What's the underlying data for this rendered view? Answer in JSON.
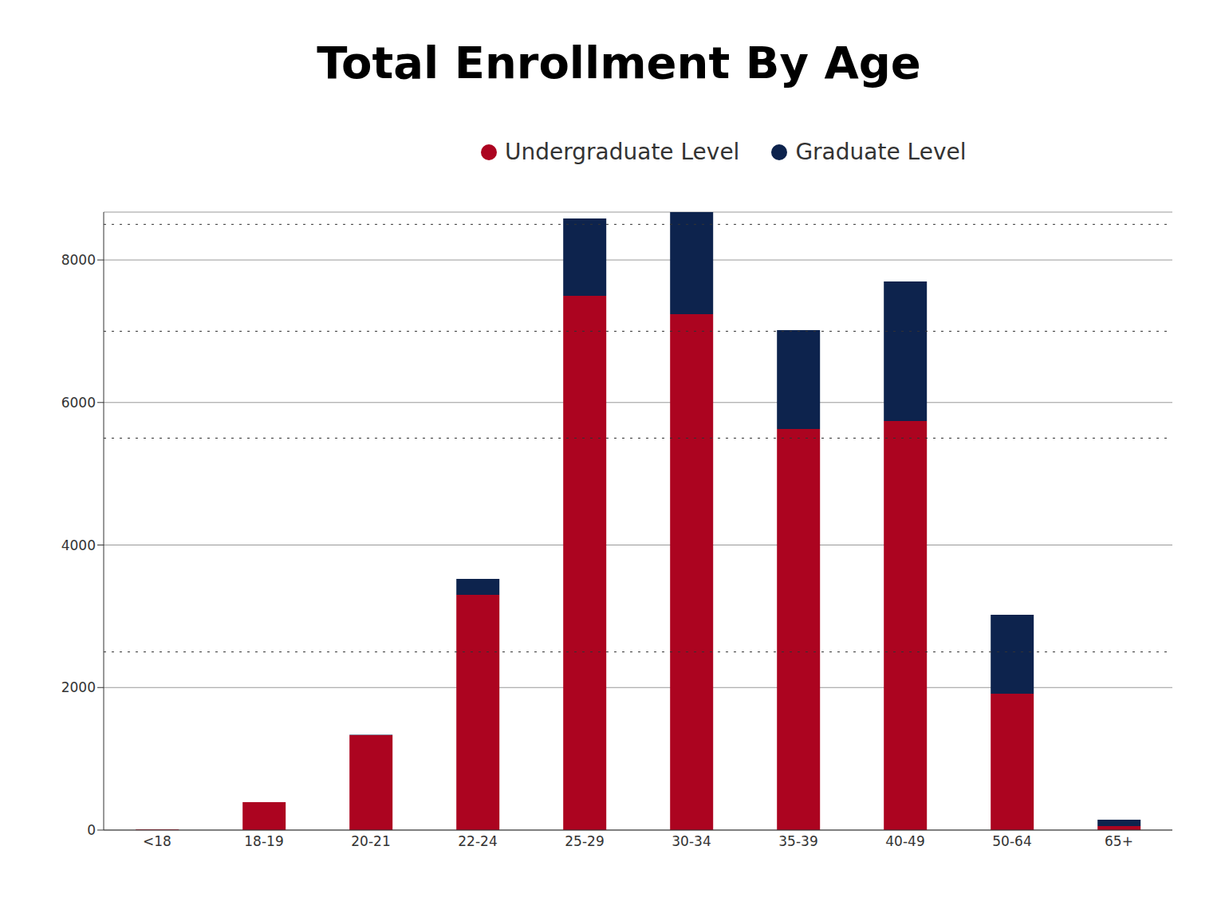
{
  "chart_data": {
    "type": "bar",
    "title": "Total Enrollment By Age",
    "categories": [
      "<18",
      "18-19",
      "20-21",
      "22-24",
      "25-29",
      "30-34",
      "35-39",
      "40-49",
      "50-64",
      "65+"
    ],
    "series": [
      {
        "name": "Undergraduate Level",
        "color": "#ac0420",
        "values": [
          8,
          392,
          1332,
          3301,
          7497,
          7240,
          5628,
          5740,
          1913,
          56
        ]
      },
      {
        "name": "Graduate Level",
        "color": "#0d234d",
        "values": [
          0,
          0,
          5,
          224,
          1085,
          1432,
          1388,
          1958,
          1108,
          89
        ]
      }
    ],
    "stacked": true,
    "ylim": [
      0,
      8672
    ],
    "yticks": [
      0,
      2000,
      4000,
      6000,
      8000
    ],
    "grid": true,
    "legend": "top",
    "reference_lines": [
      2500,
      5500,
      7000,
      8500
    ]
  }
}
